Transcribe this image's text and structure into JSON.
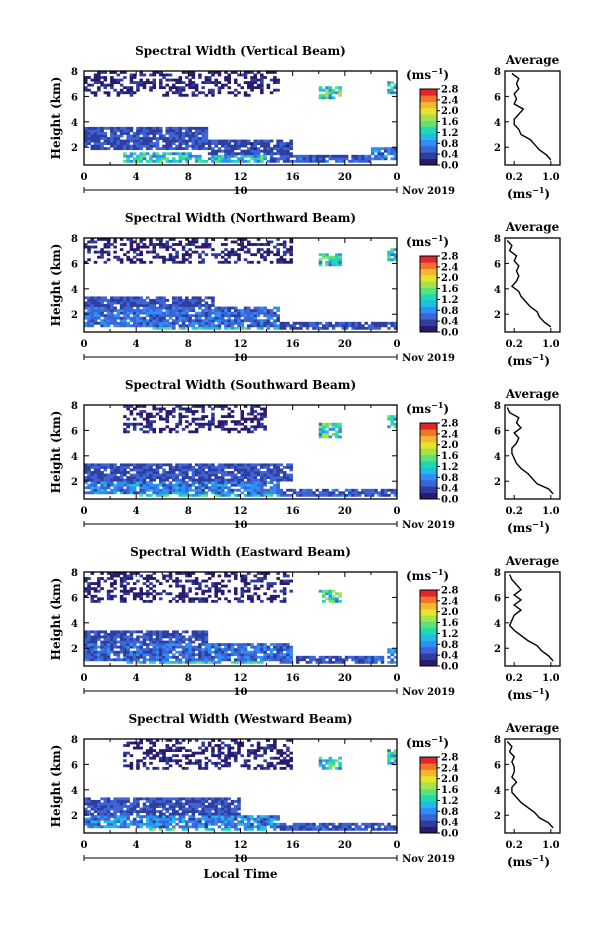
{
  "chart_data": [
    {
      "type": "heatmap",
      "title": "Spectral Width (Vertical Beam)",
      "ylabel": "Height (km)",
      "xticks": [
        "0",
        "4",
        "8",
        "12",
        "16",
        "20",
        "0"
      ],
      "ylim": [
        0.6,
        8
      ],
      "yticks": [
        "8",
        "6",
        "4",
        "2"
      ],
      "date_marker": "10",
      "date_label": "Nov 2019",
      "colorbar": {
        "unit": "(ms⁻¹)",
        "ticks": [
          "2.8",
          "2.4",
          "2.0",
          "1.6",
          "1.2",
          "0.8",
          "0.4",
          "0.0"
        ],
        "range": [
          0,
          2.8
        ]
      },
      "profile": {
        "title": "Average",
        "xlabel": "(ms⁻¹)",
        "xticks": [
          "0.2",
          "1.0"
        ],
        "xlim": [
          0,
          1.2
        ],
        "ylim": [
          0.6,
          8
        ],
        "yticks": [
          "8",
          "6",
          "4",
          "2"
        ],
        "values": [
          [
            1.0,
            1.0
          ],
          [
            0.9,
            1.4
          ],
          [
            0.75,
            1.8
          ],
          [
            0.65,
            2.2
          ],
          [
            0.55,
            2.6
          ],
          [
            0.35,
            3.0
          ],
          [
            0.3,
            3.4
          ],
          [
            0.2,
            3.8
          ],
          [
            0.2,
            4.2
          ],
          [
            0.3,
            4.6
          ],
          [
            0.4,
            5.0
          ],
          [
            0.2,
            5.4
          ],
          [
            0.25,
            5.8
          ],
          [
            0.2,
            6.2
          ],
          [
            0.3,
            6.6
          ],
          [
            0.25,
            7.0
          ],
          [
            0.3,
            7.4
          ],
          [
            0.15,
            7.8
          ]
        ]
      },
      "layers": [
        {
          "start": 0,
          "end": 9.5,
          "bottom": 1.8,
          "top": 3.6,
          "level": 0.45
        },
        {
          "start": 9.5,
          "end": 16,
          "bottom": 1.5,
          "top": 2.6,
          "level": 0.4
        },
        {
          "start": 3,
          "end": 14,
          "bottom": 0.9,
          "top": 1.7,
          "level": 1.1
        },
        {
          "start": 14,
          "end": 22,
          "bottom": 0.9,
          "top": 1.3,
          "level": 0.5
        },
        {
          "start": 0,
          "end": 15,
          "bottom": 6.0,
          "top": 7.9,
          "level": 0.2
        },
        {
          "start": 18,
          "end": 19.8,
          "bottom": 5.8,
          "top": 6.8,
          "level": 1.2
        },
        {
          "start": 22,
          "end": 24,
          "bottom": 1.0,
          "top": 2.0,
          "level": 0.7
        },
        {
          "start": 23.3,
          "end": 24,
          "bottom": 6.2,
          "top": 7.2,
          "level": 1.1
        }
      ]
    },
    {
      "type": "heatmap",
      "title": "Spectral Width (Northward Beam)",
      "ylabel": "Height (km)",
      "xticks": [
        "0",
        "4",
        "8",
        "12",
        "16",
        "20",
        "0"
      ],
      "ylim": [
        0.6,
        8
      ],
      "yticks": [
        "8",
        "6",
        "4",
        "2"
      ],
      "date_marker": "10",
      "date_label": "Nov 2019",
      "colorbar": {
        "unit": "(ms⁻¹)",
        "ticks": [
          "2.8",
          "2.4",
          "2.0",
          "1.6",
          "1.2",
          "0.8",
          "0.4",
          "0.0"
        ],
        "range": [
          0,
          2.8
        ]
      },
      "profile": {
        "title": "Average",
        "xlabel": "(ms⁻¹)",
        "xticks": [
          "0.2",
          "1.0"
        ],
        "xlim": [
          0,
          1.2
        ],
        "ylim": [
          0.6,
          8
        ],
        "yticks": [
          "8",
          "6",
          "4",
          "2"
        ],
        "values": [
          [
            1.0,
            1.0
          ],
          [
            0.85,
            1.4
          ],
          [
            0.75,
            1.8
          ],
          [
            0.7,
            2.2
          ],
          [
            0.55,
            2.6
          ],
          [
            0.45,
            3.0
          ],
          [
            0.35,
            3.4
          ],
          [
            0.3,
            3.8
          ],
          [
            0.15,
            4.2
          ],
          [
            0.25,
            4.6
          ],
          [
            0.3,
            5.0
          ],
          [
            0.25,
            5.4
          ],
          [
            0.3,
            5.8
          ],
          [
            0.2,
            6.2
          ],
          [
            0.25,
            6.6
          ],
          [
            0.1,
            7.0
          ],
          [
            0.15,
            7.4
          ],
          [
            0.05,
            7.8
          ]
        ]
      },
      "layers": [
        {
          "start": 0,
          "end": 10,
          "bottom": 2.6,
          "top": 3.5,
          "level": 0.45
        },
        {
          "start": 0,
          "end": 15,
          "bottom": 1.0,
          "top": 2.6,
          "level": 0.6
        },
        {
          "start": 5,
          "end": 15,
          "bottom": 0.8,
          "top": 1.6,
          "level": 1.2
        },
        {
          "start": 15,
          "end": 24,
          "bottom": 0.8,
          "top": 1.4,
          "level": 0.45
        },
        {
          "start": 0,
          "end": 16,
          "bottom": 6.0,
          "top": 7.9,
          "level": 0.2
        },
        {
          "start": 18,
          "end": 19.8,
          "bottom": 5.8,
          "top": 6.8,
          "level": 1.2
        },
        {
          "start": 23.3,
          "end": 24,
          "bottom": 6.2,
          "top": 7.2,
          "level": 1.1
        }
      ]
    },
    {
      "type": "heatmap",
      "title": "Spectral Width (Southward Beam)",
      "ylabel": "Height (km)",
      "xticks": [
        "0",
        "4",
        "8",
        "12",
        "16",
        "20",
        "0"
      ],
      "ylim": [
        0.6,
        8
      ],
      "yticks": [
        "8",
        "6",
        "4",
        "2"
      ],
      "date_marker": "10",
      "date_label": "Nov 2019",
      "colorbar": {
        "unit": "(ms⁻¹)",
        "ticks": [
          "2.8",
          "2.4",
          "2.0",
          "1.6",
          "1.2",
          "0.8",
          "0.4",
          "0.0"
        ],
        "range": [
          0,
          2.8
        ]
      },
      "profile": {
        "title": "Average",
        "xlabel": "(ms⁻¹)",
        "xticks": [
          "0.2",
          "1.0"
        ],
        "xlim": [
          0,
          1.2
        ],
        "ylim": [
          0.6,
          8
        ],
        "yticks": [
          "8",
          "6",
          "4",
          "2"
        ],
        "values": [
          [
            1.05,
            1.0
          ],
          [
            0.95,
            1.4
          ],
          [
            0.7,
            1.8
          ],
          [
            0.6,
            2.2
          ],
          [
            0.5,
            2.6
          ],
          [
            0.35,
            3.0
          ],
          [
            0.25,
            3.4
          ],
          [
            0.2,
            3.8
          ],
          [
            0.15,
            4.2
          ],
          [
            0.15,
            4.6
          ],
          [
            0.25,
            5.0
          ],
          [
            0.3,
            5.4
          ],
          [
            0.2,
            5.8
          ],
          [
            0.35,
            6.2
          ],
          [
            0.25,
            6.6
          ],
          [
            0.3,
            7.0
          ],
          [
            0.1,
            7.4
          ],
          [
            0.05,
            7.8
          ]
        ]
      },
      "layers": [
        {
          "start": 0,
          "end": 16,
          "bottom": 2.0,
          "top": 3.4,
          "level": 0.45
        },
        {
          "start": 0,
          "end": 15,
          "bottom": 1.0,
          "top": 2.0,
          "level": 0.7
        },
        {
          "start": 4,
          "end": 15,
          "bottom": 0.9,
          "top": 1.6,
          "level": 1.1
        },
        {
          "start": 15,
          "end": 24,
          "bottom": 0.8,
          "top": 1.4,
          "level": 0.5
        },
        {
          "start": 3,
          "end": 14,
          "bottom": 5.8,
          "top": 7.9,
          "level": 0.2
        },
        {
          "start": 18,
          "end": 19.8,
          "bottom": 5.5,
          "top": 6.6,
          "level": 1.2
        },
        {
          "start": 23.3,
          "end": 24,
          "bottom": 6.2,
          "top": 7.2,
          "level": 1.1
        }
      ]
    },
    {
      "type": "heatmap",
      "title": "Spectral Width (Eastward Beam)",
      "ylabel": "Height (km)",
      "xticks": [
        "0",
        "4",
        "8",
        "12",
        "16",
        "20",
        "0"
      ],
      "ylim": [
        0.6,
        8
      ],
      "yticks": [
        "8",
        "6",
        "4",
        "2"
      ],
      "date_marker": "10",
      "date_label": "Nov 2019",
      "colorbar": {
        "unit": "(ms⁻¹)",
        "ticks": [
          "2.8",
          "2.4",
          "2.0",
          "1.6",
          "1.2",
          "0.8",
          "0.4",
          "0.0"
        ],
        "range": [
          0,
          2.8
        ]
      },
      "profile": {
        "title": "Average",
        "xlabel": "(ms⁻¹)",
        "xticks": [
          "0.2",
          "1.0"
        ],
        "xlim": [
          0,
          1.2
        ],
        "ylim": [
          0.6,
          8
        ],
        "yticks": [
          "8",
          "6",
          "4",
          "2"
        ],
        "values": [
          [
            1.05,
            1.0
          ],
          [
            0.95,
            1.4
          ],
          [
            0.8,
            1.8
          ],
          [
            0.7,
            2.2
          ],
          [
            0.5,
            2.6
          ],
          [
            0.35,
            3.0
          ],
          [
            0.2,
            3.4
          ],
          [
            0.1,
            3.8
          ],
          [
            0.15,
            4.2
          ],
          [
            0.2,
            4.6
          ],
          [
            0.35,
            5.0
          ],
          [
            0.2,
            5.4
          ],
          [
            0.35,
            5.8
          ],
          [
            0.2,
            6.2
          ],
          [
            0.35,
            6.6
          ],
          [
            0.25,
            7.0
          ],
          [
            0.15,
            7.4
          ],
          [
            0.1,
            7.8
          ]
        ]
      },
      "layers": [
        {
          "start": 0,
          "end": 9.5,
          "bottom": 2.4,
          "top": 3.5,
          "level": 0.45
        },
        {
          "start": 0,
          "end": 16,
          "bottom": 1.0,
          "top": 2.4,
          "level": 0.6
        },
        {
          "start": 3,
          "end": 14,
          "bottom": 0.9,
          "top": 1.7,
          "level": 1.1
        },
        {
          "start": 15,
          "end": 23,
          "bottom": 0.8,
          "top": 1.3,
          "level": 0.5
        },
        {
          "start": 0,
          "end": 16,
          "bottom": 5.6,
          "top": 7.9,
          "level": 0.2
        },
        {
          "start": 18,
          "end": 19.8,
          "bottom": 5.6,
          "top": 6.6,
          "level": 1.2
        },
        {
          "start": 23.3,
          "end": 24,
          "bottom": 0.9,
          "top": 2.0,
          "level": 0.8
        }
      ]
    },
    {
      "type": "heatmap",
      "title": "Spectral Width (Westward Beam)",
      "ylabel": "Height (km)",
      "xticks": [
        "0",
        "4",
        "8",
        "12",
        "16",
        "20",
        "0"
      ],
      "ylim": [
        0.6,
        8
      ],
      "yticks": [
        "8",
        "6",
        "4",
        "2"
      ],
      "date_marker": "10",
      "date_label": "Nov 2019",
      "colorbar": {
        "unit": "(ms⁻¹)",
        "ticks": [
          "2.8",
          "2.4",
          "2.0",
          "1.6",
          "1.2",
          "0.8",
          "0.4",
          "0.0"
        ],
        "range": [
          0,
          2.8
        ]
      },
      "profile": {
        "title": "Average",
        "xlabel": "(ms⁻¹)",
        "xticks": [
          "0.2",
          "1.0"
        ],
        "xlim": [
          0,
          1.2
        ],
        "ylim": [
          0.6,
          8
        ],
        "yticks": [
          "8",
          "6",
          "4",
          "2"
        ],
        "values": [
          [
            1.05,
            1.0
          ],
          [
            0.95,
            1.4
          ],
          [
            0.75,
            1.8
          ],
          [
            0.65,
            2.2
          ],
          [
            0.5,
            2.6
          ],
          [
            0.35,
            3.0
          ],
          [
            0.25,
            3.4
          ],
          [
            0.15,
            3.8
          ],
          [
            0.15,
            4.2
          ],
          [
            0.25,
            4.6
          ],
          [
            0.15,
            5.0
          ],
          [
            0.2,
            5.4
          ],
          [
            0.2,
            5.8
          ],
          [
            0.15,
            6.2
          ],
          [
            0.2,
            6.6
          ],
          [
            0.1,
            7.0
          ],
          [
            0.15,
            7.4
          ],
          [
            0.05,
            7.8
          ]
        ]
      },
      "layers": [
        {
          "start": 0,
          "end": 12,
          "bottom": 2.0,
          "top": 3.4,
          "level": 0.45
        },
        {
          "start": 0,
          "end": 15,
          "bottom": 1.0,
          "top": 2.0,
          "level": 0.75
        },
        {
          "start": 5,
          "end": 15,
          "bottom": 0.9,
          "top": 1.7,
          "level": 1.2
        },
        {
          "start": 15,
          "end": 24,
          "bottom": 0.8,
          "top": 1.4,
          "level": 0.5
        },
        {
          "start": 3,
          "end": 16,
          "bottom": 5.6,
          "top": 7.9,
          "level": 0.2
        },
        {
          "start": 18,
          "end": 19.8,
          "bottom": 5.6,
          "top": 6.6,
          "level": 1.2
        },
        {
          "start": 23.3,
          "end": 24,
          "bottom": 6.0,
          "top": 7.2,
          "level": 1.1
        }
      ]
    }
  ],
  "xlabel": "Local Time",
  "colormap": [
    "#2a1a6e",
    "#2c3e9e",
    "#3d63d6",
    "#2f8ef5",
    "#1ebde3",
    "#20d9b0",
    "#5ee07a",
    "#a6e24a",
    "#e6e32e",
    "#f6b62f",
    "#f4742a",
    "#e0262a"
  ]
}
